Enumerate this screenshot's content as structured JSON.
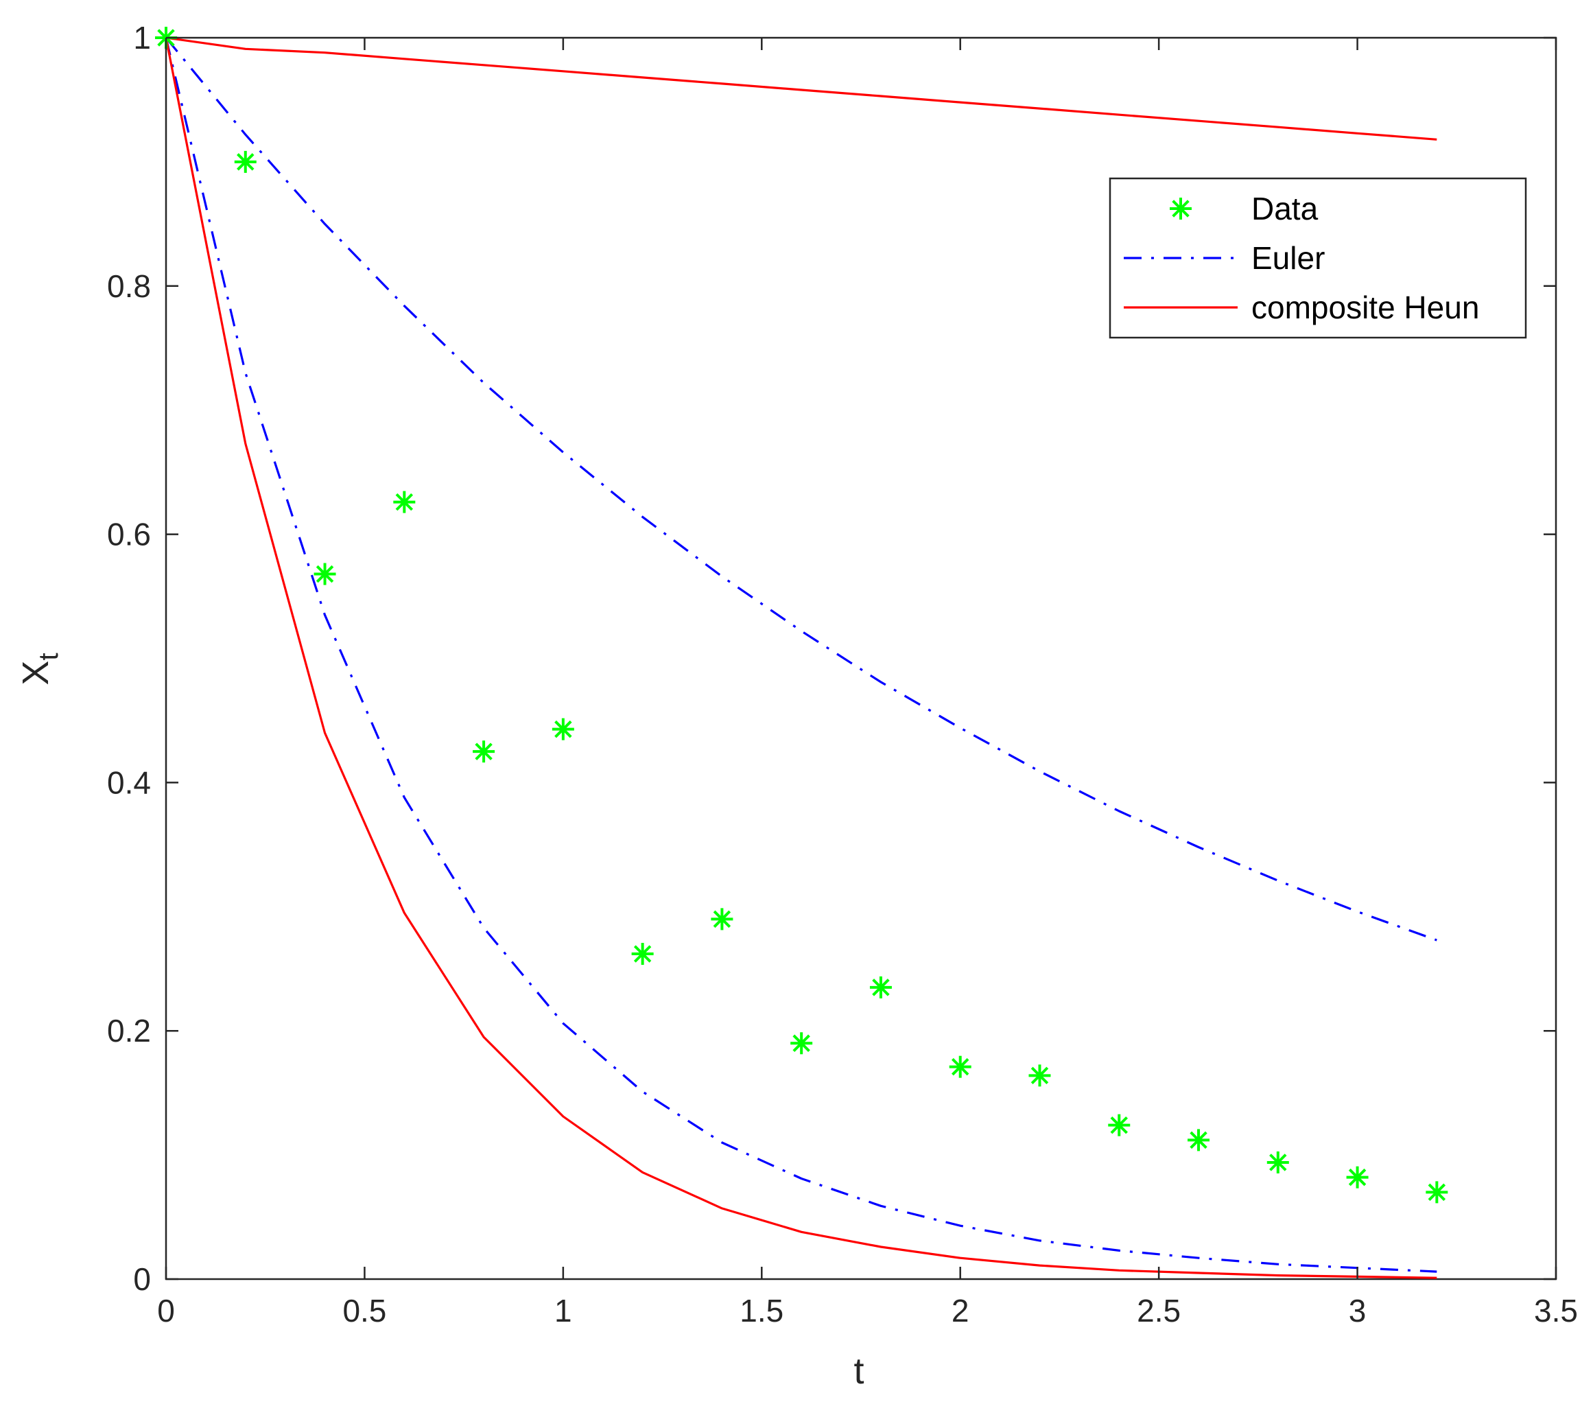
{
  "chart_data": {
    "type": "line",
    "xlabel": "t",
    "ylabel_main": "X",
    "ylabel_sub": "t",
    "xlim": [
      0,
      3.5
    ],
    "ylim": [
      0,
      1
    ],
    "xticks": [
      "0",
      "0.5",
      "1",
      "1.5",
      "2",
      "2.5",
      "3",
      "3.5"
    ],
    "yticks": [
      "0",
      "0.2",
      "0.4",
      "0.6",
      "0.8",
      "1"
    ],
    "xtick_values": [
      0,
      0.5,
      1,
      1.5,
      2,
      2.5,
      3,
      3.5
    ],
    "ytick_values": [
      0,
      0.2,
      0.4,
      0.6,
      0.8,
      1
    ],
    "grid": false,
    "box": true,
    "legend_position": "top-right",
    "legend": [
      {
        "label": "Data",
        "series": "data"
      },
      {
        "label": "Euler",
        "series": "euler_upper"
      },
      {
        "label": "composite Heun",
        "series": "heun_upper"
      }
    ],
    "colors": {
      "data": "#00ff00",
      "euler": "#0000ff",
      "heun": "#ff0000",
      "axes": "#262626"
    },
    "series": [
      {
        "id": "data",
        "style": "marker-asterisk",
        "color": "#00ff00",
        "x": [
          0,
          0.2,
          0.4,
          0.6,
          0.8,
          1.0,
          1.2,
          1.4,
          1.6,
          1.8,
          2.0,
          2.2,
          2.4,
          2.6,
          2.8,
          3.0,
          3.2
        ],
        "y": [
          1.0,
          0.9,
          0.568,
          0.626,
          0.425,
          0.443,
          0.262,
          0.29,
          0.19,
          0.235,
          0.171,
          0.164,
          0.124,
          0.112,
          0.094,
          0.082,
          0.07
        ]
      },
      {
        "id": "euler_upper",
        "style": "dash-dot",
        "color": "#0000ff",
        "x": [
          0,
          0.2,
          0.4,
          0.6,
          0.8,
          1.0,
          1.2,
          1.4,
          1.6,
          1.8,
          2.0,
          2.2,
          2.4,
          2.6,
          2.8,
          3.0,
          3.2
        ],
        "y": [
          1.0,
          0.922,
          0.85,
          0.784,
          0.722,
          0.666,
          0.614,
          0.566,
          0.522,
          0.481,
          0.444,
          0.409,
          0.377,
          0.348,
          0.321,
          0.296,
          0.273
        ]
      },
      {
        "id": "euler_lower",
        "style": "dash-dot",
        "color": "#0000ff",
        "x": [
          0,
          0.2,
          0.4,
          0.6,
          0.8,
          1.0,
          1.2,
          1.4,
          1.6,
          1.8,
          2.0,
          2.2,
          2.4,
          2.6,
          2.8,
          3.0,
          3.2
        ],
        "y": [
          1.0,
          0.73,
          0.535,
          0.388,
          0.283,
          0.206,
          0.151,
          0.11,
          0.081,
          0.059,
          0.043,
          0.031,
          0.023,
          0.017,
          0.012,
          0.009,
          0.006
        ]
      },
      {
        "id": "heun_upper",
        "style": "solid",
        "color": "#ff0000",
        "x": [
          0,
          0.2,
          0.4,
          0.6,
          0.8,
          1.0,
          1.2,
          1.4,
          1.6,
          1.8,
          2.0,
          2.2,
          2.4,
          2.6,
          2.8,
          3.0,
          3.2
        ],
        "y": [
          1.0,
          0.991,
          0.988,
          0.983,
          0.978,
          0.973,
          0.968,
          0.963,
          0.958,
          0.953,
          0.948,
          0.943,
          0.938,
          0.933,
          0.928,
          0.923,
          0.918
        ]
      },
      {
        "id": "heun_lower",
        "style": "solid",
        "color": "#ff0000",
        "x": [
          0,
          0.2,
          0.4,
          0.6,
          0.8,
          1.0,
          1.2,
          1.4,
          1.6,
          1.8,
          2.0,
          2.2,
          2.4,
          2.6,
          2.8,
          3.0,
          3.2
        ],
        "y": [
          1.0,
          0.673,
          0.44,
          0.295,
          0.195,
          0.131,
          0.086,
          0.057,
          0.038,
          0.026,
          0.017,
          0.011,
          0.007,
          0.005,
          0.003,
          0.002,
          0.001
        ]
      }
    ]
  }
}
